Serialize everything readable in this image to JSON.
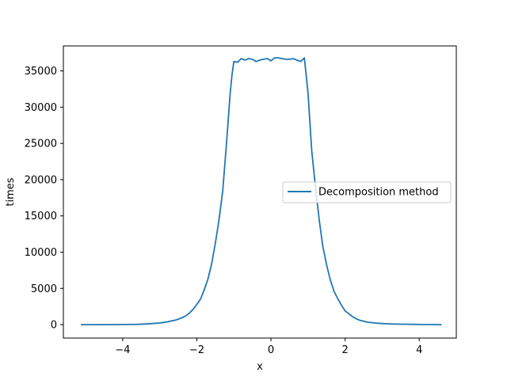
{
  "chart_data": {
    "type": "line",
    "xlabel": "x",
    "ylabel": "times",
    "xlim": [
      -5.6,
      5.0
    ],
    "ylim": [
      -1850,
      38450
    ],
    "xticks": [
      -4,
      -2,
      0,
      2,
      4
    ],
    "xtick_labels": [
      "−4",
      "−2",
      "0",
      "2",
      "4"
    ],
    "yticks": [
      0,
      5000,
      10000,
      15000,
      20000,
      25000,
      30000,
      35000
    ],
    "ytick_labels": [
      "0",
      "5000",
      "10000",
      "15000",
      "20000",
      "25000",
      "30000",
      "35000"
    ],
    "grid": false,
    "legend_position": "center-right",
    "series": [
      {
        "name": "Decomposition method",
        "color": "#1f77b4",
        "x": [
          -5.13,
          -4.8,
          -4.5,
          -4.2,
          -3.9,
          -3.6,
          -3.4,
          -3.2,
          -3.0,
          -2.9,
          -2.8,
          -2.7,
          -2.6,
          -2.5,
          -2.4,
          -2.3,
          -2.2,
          -2.1,
          -2.0,
          -1.9,
          -1.8,
          -1.7,
          -1.6,
          -1.5,
          -1.4,
          -1.3,
          -1.2,
          -1.1,
          -1.05,
          -1.0,
          -0.9,
          -0.8,
          -0.7,
          -0.6,
          -0.5,
          -0.4,
          -0.3,
          -0.2,
          -0.1,
          0.0,
          0.1,
          0.2,
          0.3,
          0.4,
          0.5,
          0.6,
          0.7,
          0.8,
          0.9,
          1.0,
          1.1,
          1.2,
          1.3,
          1.4,
          1.5,
          1.6,
          1.7,
          1.8,
          1.9,
          2.0,
          2.1,
          2.2,
          2.3,
          2.4,
          2.6,
          2.8,
          3.0,
          3.2,
          3.5,
          3.8,
          4.1,
          4.4,
          4.6
        ],
        "y": [
          0,
          0,
          0,
          10,
          20,
          40,
          80,
          150,
          230,
          300,
          380,
          500,
          600,
          750,
          950,
          1200,
          1600,
          2100,
          2800,
          3500,
          4800,
          6300,
          8400,
          11200,
          14500,
          18500,
          25000,
          32000,
          34500,
          36300,
          36200,
          36700,
          36500,
          36700,
          36600,
          36300,
          36500,
          36600,
          36700,
          36400,
          36800,
          36800,
          36700,
          36600,
          36600,
          36700,
          36500,
          36300,
          36800,
          32000,
          24000,
          19000,
          14500,
          10800,
          8300,
          6200,
          4600,
          3600,
          2700,
          1900,
          1500,
          1100,
          800,
          600,
          350,
          220,
          150,
          100,
          60,
          40,
          20,
          10,
          0
        ]
      }
    ]
  }
}
